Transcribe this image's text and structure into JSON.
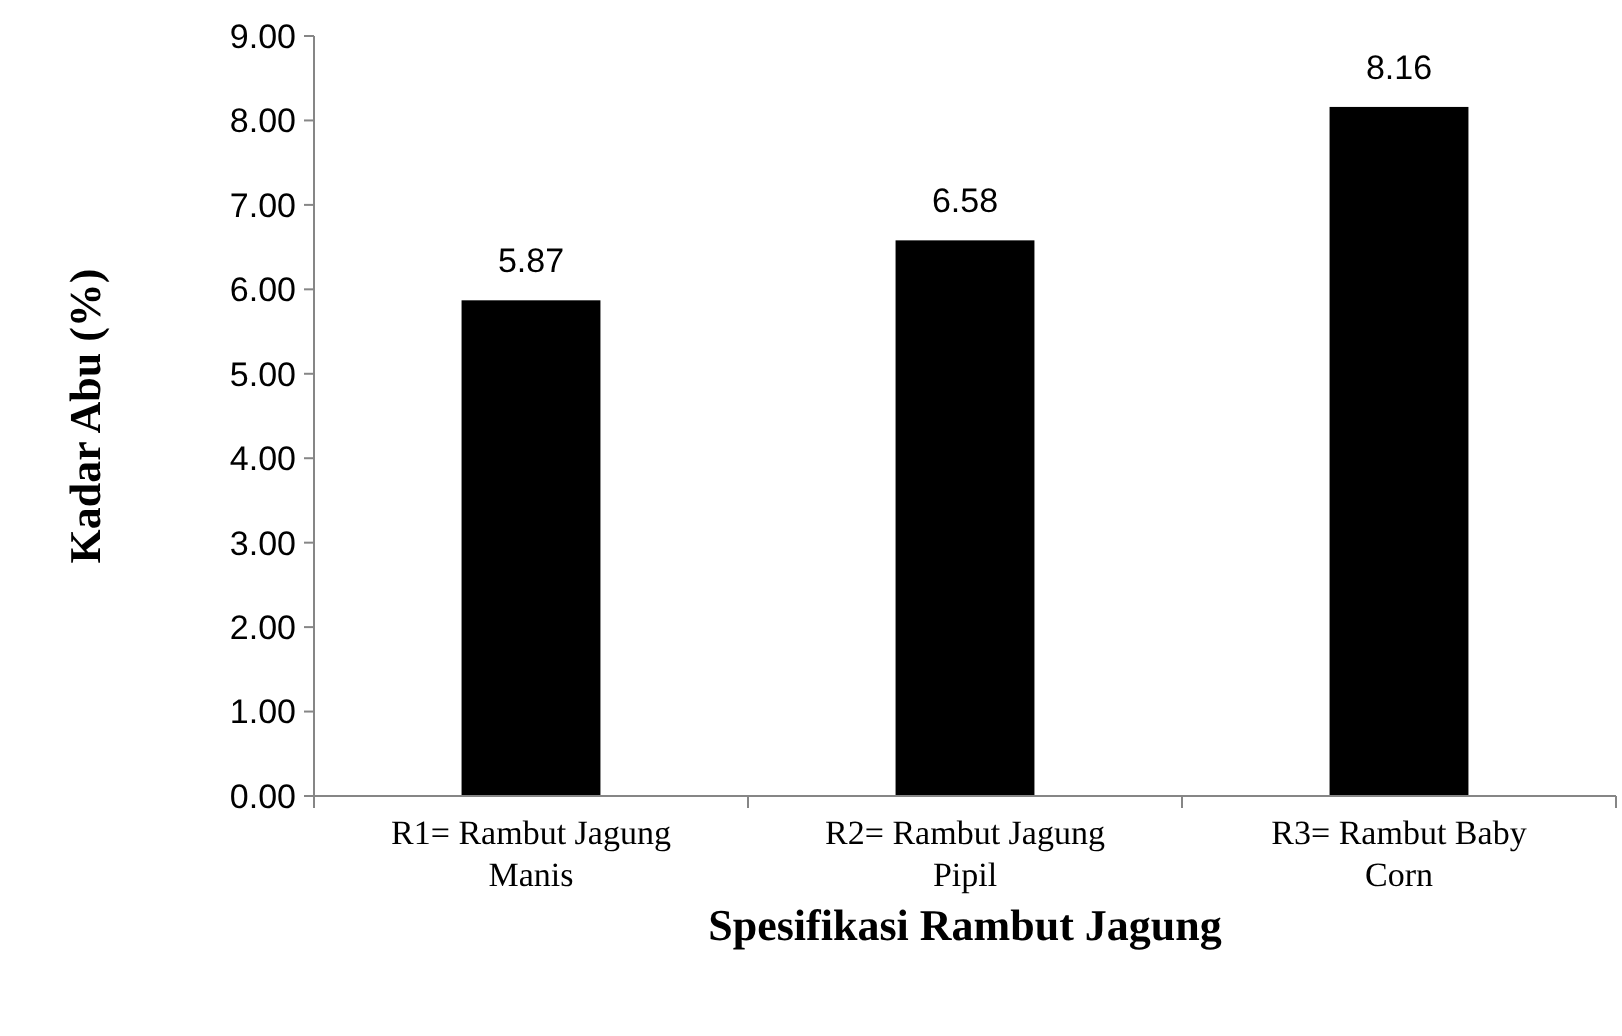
{
  "chart_data": {
    "type": "bar",
    "xlabel": "Spesifikasi Rambut Jagung",
    "ylabel": "Kadar Abu (%)",
    "categories": [
      "R1= Rambut Jagung Manis",
      "R2= Rambut Jagung Pipil",
      "R3= Rambut Baby Corn"
    ],
    "values": [
      5.87,
      6.58,
      8.16
    ],
    "color": "#000000",
    "data_labels": true,
    "grid": false,
    "ylim": [
      0,
      9
    ],
    "yticks": [
      {
        "value": 0,
        "label": "0.00"
      },
      {
        "value": 1,
        "label": "1.00"
      },
      {
        "value": 2,
        "label": "2.00"
      },
      {
        "value": 3,
        "label": "3.00"
      },
      {
        "value": 4,
        "label": "4.00"
      },
      {
        "value": 5,
        "label": "5.00"
      },
      {
        "value": 6,
        "label": "6.00"
      },
      {
        "value": 7,
        "label": "7.00"
      },
      {
        "value": 8,
        "label": "8.00"
      },
      {
        "value": 9,
        "label": "9.00"
      }
    ]
  }
}
